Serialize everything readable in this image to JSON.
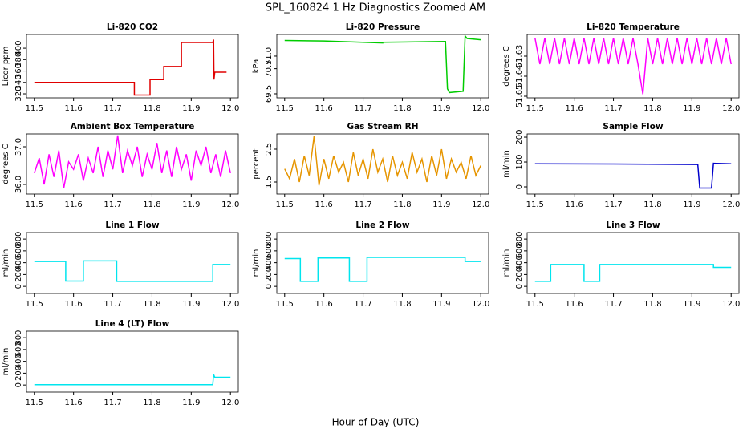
{
  "title": "SPL_160824  1 Hz Diagnostics Zoomed AM",
  "xlabel": "Hour of Day (UTC)",
  "chart_data": [
    {
      "type": "line",
      "title": "Li-820 CO2",
      "ylabel": "Licor ppm",
      "color": "#e00000",
      "x": [
        11.5,
        11.755,
        11.755,
        11.795,
        11.795,
        11.83,
        11.83,
        11.875,
        11.875,
        11.955,
        11.957,
        11.958,
        11.96,
        11.99
      ],
      "values": [
        340,
        340,
        318,
        318,
        345,
        345,
        368,
        368,
        410,
        410,
        415,
        345,
        358,
        358
      ],
      "xlim": [
        11.48,
        12.02
      ],
      "xticks": [
        11.5,
        11.6,
        11.7,
        11.8,
        11.9,
        {
          "value": 12,
          "label": "12.0"
        }
      ],
      "ylim": [
        313,
        424
      ],
      "yticks": [
        320,
        340,
        360,
        380,
        400
      ]
    },
    {
      "type": "line",
      "title": "Li-820 Pressure",
      "ylabel": "kPa",
      "color": "#00cc00",
      "x": [
        11.5,
        11.6,
        11.75,
        11.75,
        11.91,
        11.915,
        11.92,
        11.955,
        11.96,
        11.965,
        12.0
      ],
      "values": [
        71.62,
        71.6,
        71.52,
        71.55,
        71.58,
        69.7,
        69.55,
        69.6,
        71.8,
        71.7,
        71.65
      ],
      "xlim": [
        11.48,
        12.02
      ],
      "xticks": [
        11.5,
        11.6,
        11.7,
        11.8,
        11.9,
        {
          "value": 12,
          "label": "12.0"
        }
      ],
      "ylim": [
        69.34,
        71.86
      ],
      "yticks": [
        69.5,
        70.5,
        {
          "value": 71,
          "label": "71.0"
        }
      ]
    },
    {
      "type": "line",
      "title": "Li-820 Temperature",
      "ylabel": "degrees C",
      "color": "#ff00ff",
      "x": [
        11.5,
        11.5125,
        11.525,
        11.5375,
        11.55,
        11.5625,
        11.575,
        11.5875,
        11.6,
        11.6125,
        11.625,
        11.6375,
        11.65,
        11.6625,
        11.675,
        11.6875,
        11.7,
        11.7125,
        11.725,
        11.7375,
        11.75,
        11.7625,
        11.775,
        11.7875,
        11.8,
        11.8125,
        11.825,
        11.8375,
        11.85,
        11.8625,
        11.875,
        11.8875,
        11.9,
        11.9125,
        11.925,
        11.9375,
        11.95,
        11.9625,
        11.975,
        11.9875,
        12.0
      ],
      "values": [
        51.621,
        51.634,
        51.621,
        51.634,
        51.621,
        51.634,
        51.621,
        51.634,
        51.621,
        51.634,
        51.621,
        51.634,
        51.621,
        51.634,
        51.621,
        51.634,
        51.621,
        51.634,
        51.621,
        51.634,
        51.621,
        51.634,
        51.649,
        51.621,
        51.634,
        51.621,
        51.634,
        51.621,
        51.634,
        51.621,
        51.634,
        51.621,
        51.634,
        51.621,
        51.634,
        51.621,
        51.634,
        51.621,
        51.634,
        51.621,
        51.634
      ],
      "xlim": [
        11.48,
        12.02
      ],
      "xticks": [
        11.5,
        11.6,
        11.7,
        11.8,
        11.9,
        {
          "value": 12,
          "label": "12.0"
        }
      ],
      "ylim": [
        51.6508,
        51.6192
      ],
      "yticks": [
        51.65,
        51.64,
        51.63
      ]
    },
    {
      "type": "line",
      "title": "Ambient Box Temperature",
      "ylabel": "degrees C",
      "color": "#ff00ff",
      "x": [
        11.5,
        11.5125,
        11.525,
        11.5375,
        11.55,
        11.5625,
        11.575,
        11.5875,
        11.6,
        11.6125,
        11.625,
        11.6375,
        11.65,
        11.6625,
        11.675,
        11.6875,
        11.7,
        11.7125,
        11.725,
        11.7375,
        11.75,
        11.7625,
        11.775,
        11.7875,
        11.8,
        11.8125,
        11.825,
        11.8375,
        11.85,
        11.8625,
        11.875,
        11.8875,
        11.9,
        11.9125,
        11.925,
        11.9375,
        11.95,
        11.9625,
        11.975,
        11.9875,
        12.0
      ],
      "values": [
        36.3,
        36.7,
        36.0,
        36.8,
        36.2,
        36.9,
        35.9,
        36.6,
        36.4,
        36.8,
        36.1,
        36.7,
        36.3,
        37.0,
        36.2,
        36.9,
        36.4,
        37.3,
        36.3,
        36.9,
        36.5,
        37.0,
        36.2,
        36.8,
        36.4,
        37.1,
        36.3,
        36.9,
        36.2,
        37.0,
        36.4,
        36.8,
        36.1,
        36.9,
        36.5,
        37.0,
        36.3,
        36.8,
        36.2,
        36.9,
        36.3
      ],
      "xlim": [
        11.48,
        12.02
      ],
      "xticks": [
        11.5,
        11.6,
        11.7,
        11.8,
        11.9,
        {
          "value": 12,
          "label": "12.0"
        }
      ],
      "ylim": [
        35.745,
        37.34
      ],
      "yticks": [
        {
          "value": 36,
          "label": "36.0"
        },
        {
          "value": 37,
          "label": "37.0"
        }
      ]
    },
    {
      "type": "line",
      "title": "Gas Stream RH",
      "ylabel": "percent",
      "color": "#e69500",
      "x": [
        11.5,
        11.5125,
        11.525,
        11.5375,
        11.55,
        11.5625,
        11.575,
        11.5875,
        11.6,
        11.6125,
        11.625,
        11.6375,
        11.65,
        11.6625,
        11.675,
        11.6875,
        11.7,
        11.7125,
        11.725,
        11.7375,
        11.75,
        11.7625,
        11.775,
        11.7875,
        11.8,
        11.8125,
        11.825,
        11.8375,
        11.85,
        11.8625,
        11.875,
        11.8875,
        11.9,
        11.9125,
        11.925,
        11.9375,
        11.95,
        11.9625,
        11.975,
        11.9875,
        12.0
      ],
      "values": [
        1.9,
        1.6,
        2.2,
        1.5,
        2.3,
        1.7,
        2.9,
        1.4,
        2.2,
        1.6,
        2.3,
        1.8,
        2.1,
        1.5,
        2.4,
        1.7,
        2.2,
        1.6,
        2.5,
        1.8,
        2.2,
        1.5,
        2.3,
        1.7,
        2.1,
        1.6,
        2.4,
        1.8,
        2.2,
        1.5,
        2.3,
        1.7,
        2.5,
        1.6,
        2.2,
        1.8,
        2.1,
        1.6,
        2.3,
        1.7,
        2.0
      ],
      "xlim": [
        11.48,
        12.02
      ],
      "xticks": [
        11.5,
        11.6,
        11.7,
        11.8,
        11.9,
        {
          "value": 12,
          "label": "12.0"
        }
      ],
      "ylim": [
        1.134,
        2.963
      ],
      "yticks": [
        1.5,
        2.5
      ]
    },
    {
      "type": "line",
      "title": "Sample Flow",
      "ylabel": "ml/min",
      "color": "#0000cc",
      "x": [
        11.5,
        11.7,
        11.915,
        11.92,
        11.95,
        11.955,
        12.0
      ],
      "values": [
        93,
        92,
        90,
        -5,
        -5,
        95,
        93
      ],
      "xlim": [
        11.48,
        12.02
      ],
      "xticks": [
        11.5,
        11.6,
        11.7,
        11.8,
        11.9,
        {
          "value": 12,
          "label": "12.0"
        }
      ],
      "ylim": [
        -29,
        213
      ],
      "yticks": [
        0,
        100,
        200
      ]
    },
    {
      "type": "line",
      "title": "Line 1 Flow",
      "ylabel": "ml/min",
      "color": "#00e5ee",
      "x": [
        11.5,
        11.58,
        11.58,
        11.625,
        11.625,
        11.71,
        11.71,
        11.955,
        11.955,
        12.0
      ],
      "values": [
        420,
        420,
        90,
        90,
        430,
        430,
        85,
        85,
        370,
        370
      ],
      "xlim": [
        11.48,
        12.02
      ],
      "xticks": [
        11.5,
        11.6,
        11.7,
        11.8,
        11.9,
        {
          "value": 12,
          "label": "12.0"
        }
      ],
      "ylim": [
        -120,
        910
      ],
      "yticks": [
        0,
        200,
        400,
        600,
        800
      ]
    },
    {
      "type": "line",
      "title": "Line 2 Flow",
      "ylabel": "ml/min",
      "color": "#00e5ee",
      "x": [
        11.5,
        11.54,
        11.54,
        11.585,
        11.585,
        11.665,
        11.665,
        11.71,
        11.71,
        11.96,
        11.96,
        12.0
      ],
      "values": [
        470,
        470,
        85,
        85,
        480,
        480,
        85,
        85,
        490,
        490,
        420,
        420
      ],
      "xlim": [
        11.48,
        12.02
      ],
      "xticks": [
        11.5,
        11.6,
        11.7,
        11.8,
        11.9,
        {
          "value": 12,
          "label": "12.0"
        }
      ],
      "ylim": [
        -120,
        910
      ],
      "yticks": [
        0,
        200,
        400,
        600,
        800
      ]
    },
    {
      "type": "line",
      "title": "Line 3 Flow",
      "ylabel": "ml/min",
      "color": "#00e5ee",
      "x": [
        11.5,
        11.54,
        11.54,
        11.625,
        11.625,
        11.665,
        11.665,
        11.955,
        11.955,
        12.0
      ],
      "values": [
        85,
        85,
        370,
        370,
        85,
        85,
        370,
        370,
        320,
        320
      ],
      "xlim": [
        11.48,
        12.02
      ],
      "xticks": [
        11.5,
        11.6,
        11.7,
        11.8,
        11.9,
        {
          "value": 12,
          "label": "12.0"
        }
      ],
      "ylim": [
        -120,
        910
      ],
      "yticks": [
        0,
        200,
        400,
        600,
        800
      ]
    },
    {
      "type": "line",
      "title": "Line 4 (LT) Flow",
      "ylabel": "ml/min",
      "color": "#00e5ee",
      "x": [
        11.5,
        11.955,
        11.957,
        11.96,
        12.0
      ],
      "values": [
        5,
        5,
        180,
        130,
        130
      ],
      "xlim": [
        11.48,
        12.02
      ],
      "xticks": [
        11.5,
        11.6,
        11.7,
        11.8,
        11.9,
        {
          "value": 12,
          "label": "12.0"
        }
      ],
      "ylim": [
        -120,
        910
      ],
      "yticks": [
        0,
        200,
        400,
        600,
        800
      ]
    }
  ]
}
